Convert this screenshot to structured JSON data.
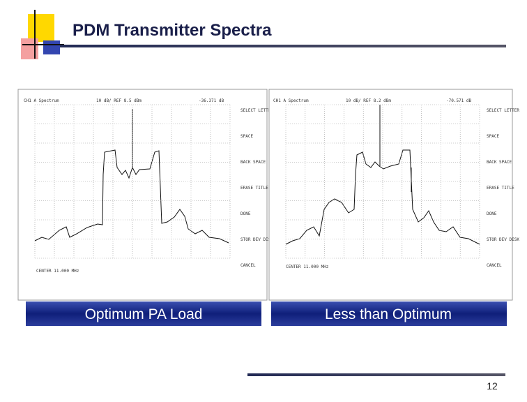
{
  "header": {
    "title": "PDM Transmitter Spectra"
  },
  "panels": [
    {
      "caption": "Optimum PA Load",
      "screen": {
        "label": "CH1 A Spectrum",
        "scale": "10 dB/ REF 8.5 dBm",
        "marker": "-36.371 dB",
        "center": "CENTER 11.000 MHz"
      }
    },
    {
      "caption": "Less than Optimum",
      "screen": {
        "label": "CH1 A Spectrum",
        "scale": "10 dB/ REF 8.2 dBm",
        "marker": "-70.571 dB",
        "center": "CENTER 11.000 MHz"
      }
    }
  ],
  "softkeys": [
    "SELECT LETTER",
    "SPACE",
    "BACK SPACE",
    "ERASE TITLE",
    "DONE",
    "STOR DEV DISK",
    "CANCEL"
  ],
  "footer": {
    "page": "12"
  }
}
